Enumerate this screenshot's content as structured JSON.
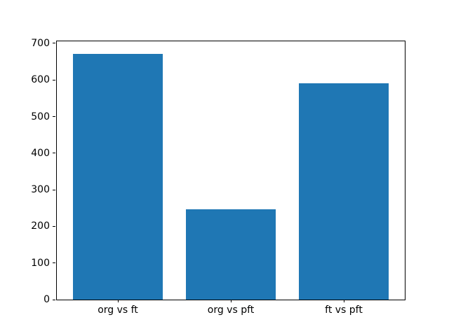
{
  "chart_data": {
    "type": "bar",
    "categories": [
      "org vs ft",
      "org vs pft",
      "ft vs pft"
    ],
    "values": [
      672,
      246,
      591
    ],
    "title": "",
    "xlabel": "",
    "ylabel": "",
    "ylim": [
      0,
      705.6
    ],
    "xlim": [
      -0.54,
      2.54
    ],
    "y_ticks": [
      0,
      100,
      200,
      300,
      400,
      500,
      600,
      700
    ],
    "bar_width": 0.8,
    "bar_color": "#1f77b4",
    "grid": false,
    "legend": false
  },
  "figure": {
    "background": "#ffffff",
    "spine_color": "#000000",
    "tick_color": "#000000"
  }
}
